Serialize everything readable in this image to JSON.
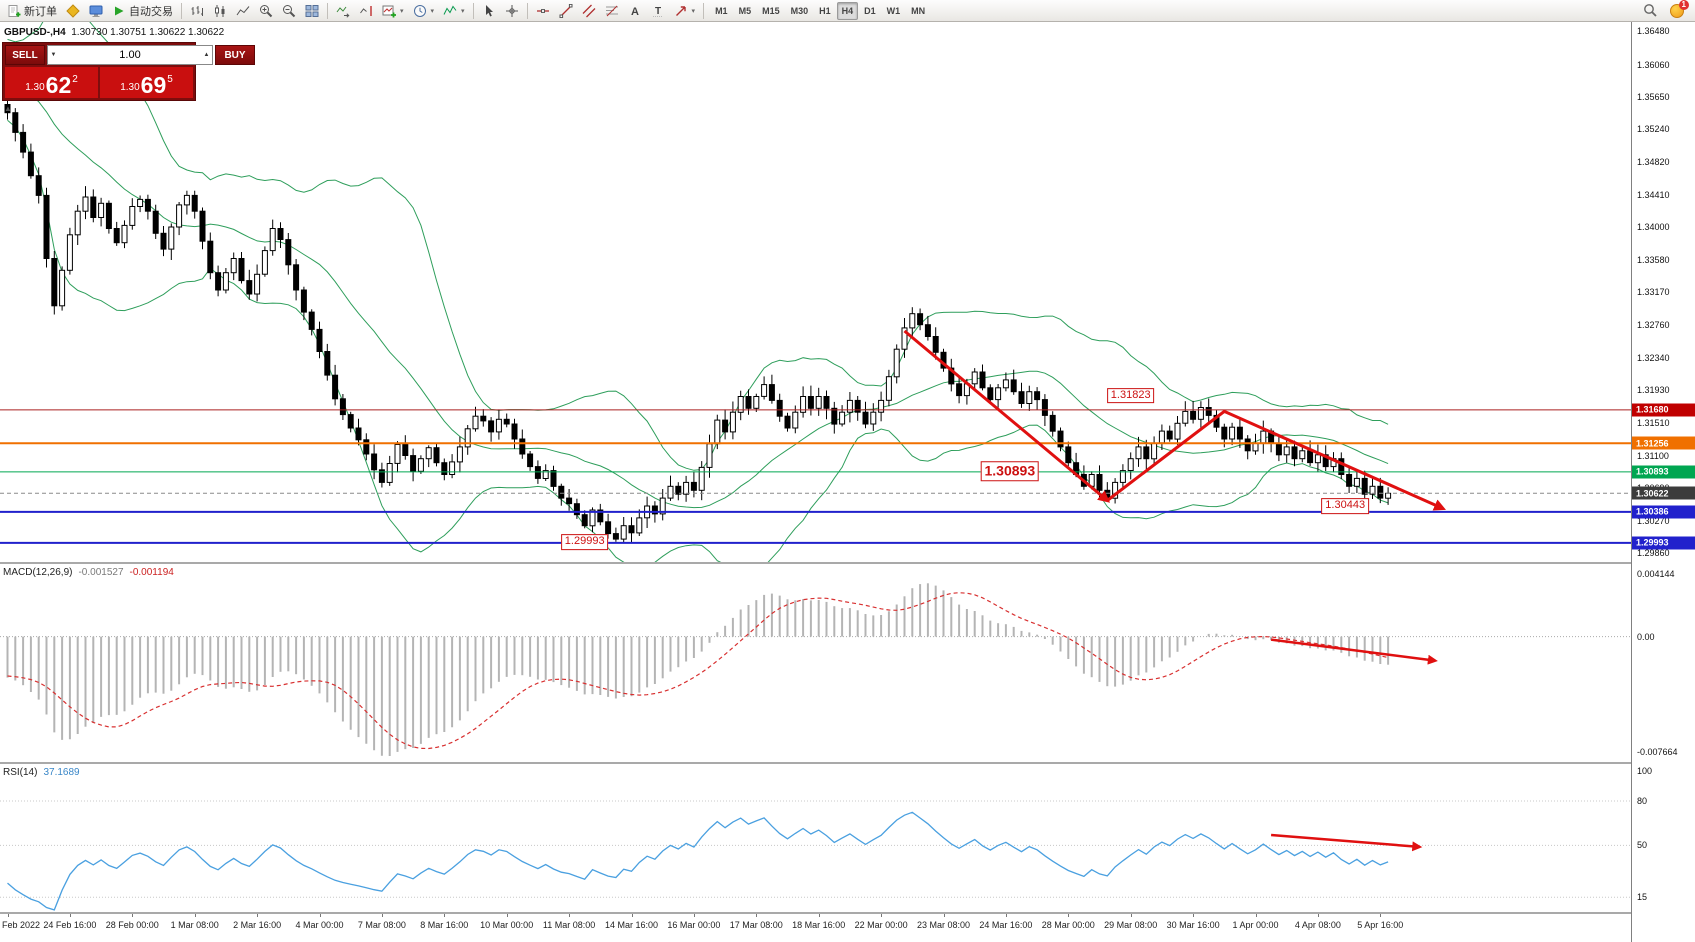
{
  "toolbar": {
    "new_order_label": "新订单",
    "autotrade_label": "自动交易",
    "timeframes": [
      "M1",
      "M5",
      "M15",
      "M30",
      "H1",
      "H4",
      "D1",
      "W1",
      "MN"
    ],
    "active_timeframe": "H4",
    "notification_count": "1"
  },
  "quote_header": {
    "symbol_period": "GBPUSD-,H4",
    "ohlc": "1.30730 1.30751 1.30622 1.30622"
  },
  "one_click": {
    "sell_label": "SELL",
    "buy_label": "BUY",
    "volume": "1.00",
    "sell_price_prefix": "1.30",
    "sell_price_main": "62",
    "sell_price_sup": "2",
    "buy_price_prefix": "1.30",
    "buy_price_main": "69",
    "buy_price_sup": "5"
  },
  "price_axis": {
    "labels": [
      "1.36480",
      "1.36060",
      "1.35650",
      "1.35240",
      "1.34820",
      "1.34410",
      "1.34000",
      "1.33580",
      "1.33170",
      "1.32760",
      "1.32340",
      "1.31930",
      "1.31510",
      "1.31100",
      "1.30690",
      "1.30270",
      "1.29860"
    ],
    "tags": [
      {
        "text": "1.31680",
        "price": 1.3168,
        "bg": "#c00000",
        "line": {
          "style": "solid",
          "color": "#aa2222",
          "width": 1
        }
      },
      {
        "text": "1.31256",
        "price": 1.31256,
        "bg": "#f07000",
        "line": {
          "style": "solid",
          "color": "#f07000",
          "width": 2
        }
      },
      {
        "text": "1.30893",
        "price": 1.30893,
        "bg": "#00a651",
        "line": {
          "style": "solid",
          "color": "#00a651",
          "width": 1
        }
      },
      {
        "text": "1.30622",
        "price": 1.30622,
        "bg": "#3c3c3c",
        "line": {
          "style": "dashed",
          "color": "#8a8a8a",
          "width": 1
        }
      },
      {
        "text": "1.30386",
        "price": 1.30386,
        "bg": "#2121cc",
        "line": {
          "style": "solid",
          "color": "#2121cc",
          "width": 2
        }
      },
      {
        "text": "1.29993",
        "price": 1.29993,
        "bg": "#2121cc",
        "line": {
          "style": "solid",
          "color": "#2121cc",
          "width": 2
        }
      }
    ]
  },
  "time_axis": {
    "labels": [
      {
        "text": "Feb 2022",
        "i": 0
      },
      {
        "text": "24 Feb 16:00",
        "i": 8
      },
      {
        "text": "28 Feb 00:00",
        "i": 16
      },
      {
        "text": "1 Mar 08:00",
        "i": 24
      },
      {
        "text": "2 Mar 16:00",
        "i": 32
      },
      {
        "text": "4 Mar 00:00",
        "i": 40
      },
      {
        "text": "7 Mar 08:00",
        "i": 48
      },
      {
        "text": "8 Mar 16:00",
        "i": 56
      },
      {
        "text": "10 Mar 00:00",
        "i": 64
      },
      {
        "text": "11 Mar 08:00",
        "i": 72
      },
      {
        "text": "14 Mar 16:00",
        "i": 80
      },
      {
        "text": "16 Mar 00:00",
        "i": 88
      },
      {
        "text": "17 Mar 08:00",
        "i": 96
      },
      {
        "text": "18 Mar 16:00",
        "i": 104
      },
      {
        "text": "22 Mar 00:00",
        "i": 112
      },
      {
        "text": "23 Mar 08:00",
        "i": 120
      },
      {
        "text": "24 Mar 16:00",
        "i": 128
      },
      {
        "text": "28 Mar 00:00",
        "i": 136
      },
      {
        "text": "29 Mar 08:00",
        "i": 144
      },
      {
        "text": "30 Mar 16:00",
        "i": 152
      },
      {
        "text": "1 Apr 00:00",
        "i": 160
      },
      {
        "text": "4 Apr 08:00",
        "i": 168
      },
      {
        "text": "5 Apr 16:00",
        "i": 176
      }
    ]
  },
  "indicators": {
    "macd": {
      "label": "MACD(12,26,9)",
      "value_main": "-0.001527",
      "value_signal": "-0.001194",
      "axis": [
        {
          "text": "0.004144",
          "v": 0.004144
        },
        {
          "text": "0.00",
          "v": 0
        },
        {
          "text": "-0.007664",
          "v": -0.007664
        }
      ]
    },
    "rsi": {
      "label": "RSI(14)",
      "value": "37.1689",
      "axis": [
        {
          "text": "100",
          "v": 100
        },
        {
          "text": "80",
          "v": 80
        },
        {
          "text": "50",
          "v": 50
        },
        {
          "text": "15",
          "v": 15
        }
      ],
      "levels": [
        80,
        50,
        15
      ]
    }
  },
  "annotations": {
    "price_labels": [
      {
        "text": "1.31823",
        "i": 144,
        "price": 1.3186,
        "font": 11,
        "bold": false
      },
      {
        "text": "1.30893",
        "i": 128.5,
        "price": 1.309,
        "font": 14,
        "bold": true
      },
      {
        "text": "1.30443",
        "i": 171.5,
        "price": 1.3046,
        "font": 11,
        "bold": false
      },
      {
        "text": "1.29993",
        "i": 74,
        "price": 1.3,
        "font": 11,
        "bold": false
      }
    ],
    "trend_zigzag": {
      "color": "#e01010",
      "points": [
        [
          115,
          1.3268
        ],
        [
          141,
          1.3053
        ],
        [
          156,
          1.3166
        ],
        [
          184,
          1.3043
        ]
      ]
    },
    "macd_arrow": {
      "i1": 162,
      "v1": -0.0002,
      "i2": 183,
      "v2": -0.0016
    },
    "rsi_arrow": {
      "i1": 162,
      "v1": 57,
      "i2": 181,
      "v2": 49
    }
  },
  "chart_data": {
    "type": "candlestick",
    "symbol": "GBPUSD",
    "timeframe": "H4",
    "title": "GBPUSD-,H4",
    "price_range": [
      1.2975,
      1.366
    ],
    "last_close": 1.30622,
    "closes": [
      1.3545,
      1.352,
      1.3495,
      1.3465,
      1.344,
      1.336,
      1.33,
      1.3345,
      1.339,
      1.342,
      1.3438,
      1.3412,
      1.343,
      1.3398,
      1.338,
      1.3402,
      1.3426,
      1.3435,
      1.342,
      1.3392,
      1.3372,
      1.34,
      1.3428,
      1.344,
      1.342,
      1.3382,
      1.3342,
      1.332,
      1.3342,
      1.336,
      1.3332,
      1.3315,
      1.334,
      1.337,
      1.3398,
      1.3384,
      1.3352,
      1.332,
      1.3292,
      1.327,
      1.3242,
      1.3212,
      1.3182,
      1.3162,
      1.3145,
      1.313,
      1.3112,
      1.3092,
      1.3076,
      1.31,
      1.3124,
      1.311,
      1.309,
      1.3106,
      1.312,
      1.3101,
      1.3086,
      1.3102,
      1.3121,
      1.3144,
      1.316,
      1.3154,
      1.314,
      1.3156,
      1.315,
      1.3131,
      1.3112,
      1.3096,
      1.3081,
      1.3091,
      1.3071,
      1.3056,
      1.3049,
      1.3035,
      1.3021,
      1.3041,
      1.3026,
      1.3011,
      1.3004,
      1.3021,
      1.3012,
      1.3031,
      1.3046,
      1.3036,
      1.3056,
      1.3071,
      1.3061,
      1.3076,
      1.3066,
      1.3095,
      1.3125,
      1.3155,
      1.314,
      1.3165,
      1.3185,
      1.317,
      1.3185,
      1.32,
      1.318,
      1.316,
      1.3145,
      1.3165,
      1.3185,
      1.317,
      1.3185,
      1.317,
      1.315,
      1.3165,
      1.318,
      1.3165,
      1.315,
      1.3165,
      1.318,
      1.321,
      1.3245,
      1.3272,
      1.329,
      1.3276,
      1.3261,
      1.3241,
      1.3221,
      1.3201,
      1.3186,
      1.3201,
      1.3216,
      1.3196,
      1.3181,
      1.3196,
      1.3206,
      1.3191,
      1.3176,
      1.3191,
      1.3181,
      1.3161,
      1.3141,
      1.3121,
      1.3101,
      1.3086,
      1.3071,
      1.3086,
      1.3066,
      1.3056,
      1.3076,
      1.3091,
      1.3106,
      1.3121,
      1.3106,
      1.3126,
      1.3141,
      1.3131,
      1.3151,
      1.3166,
      1.3156,
      1.3171,
      1.3161,
      1.3146,
      1.3131,
      1.3146,
      1.3131,
      1.3116,
      1.3126,
      1.3141,
      1.3126,
      1.3111,
      1.3121,
      1.3106,
      1.3116,
      1.3101,
      1.3111,
      1.3096,
      1.3106,
      1.3086,
      1.3071,
      1.3081,
      1.3061,
      1.3071,
      1.3056,
      1.30622
    ],
    "indicators_params": {
      "bollinger": {
        "period": 20,
        "deviation": 2
      },
      "macd": {
        "fast": 12,
        "slow": 26,
        "signal": 9
      },
      "rsi": {
        "period": 14
      }
    }
  }
}
